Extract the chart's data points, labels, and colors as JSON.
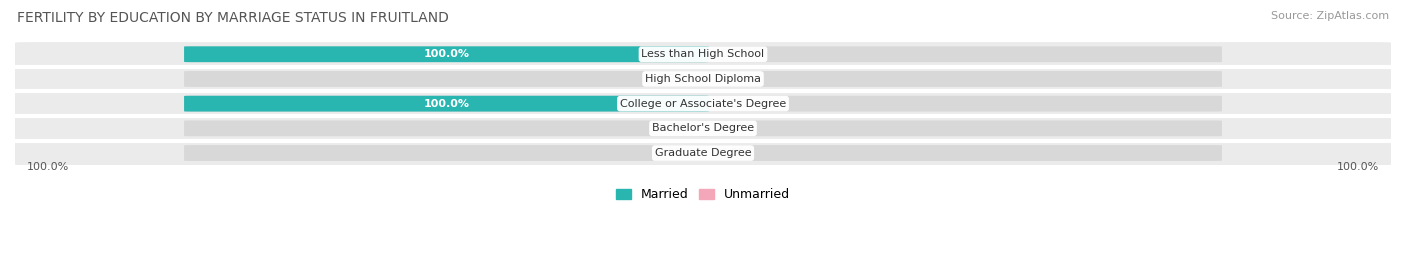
{
  "title": "FERTILITY BY EDUCATION BY MARRIAGE STATUS IN FRUITLAND",
  "source": "Source: ZipAtlas.com",
  "categories": [
    "Less than High School",
    "High School Diploma",
    "College or Associate's Degree",
    "Bachelor's Degree",
    "Graduate Degree"
  ],
  "married_values": [
    100.0,
    0.0,
    100.0,
    0.0,
    0.0
  ],
  "unmarried_values": [
    0.0,
    0.0,
    0.0,
    0.0,
    0.0
  ],
  "married_color": "#29b5b0",
  "married_light_color": "#7dd4d2",
  "unmarried_color": "#f4a7b9",
  "row_bg_color": "#ebebeb",
  "row_sep_color": "#ffffff",
  "label_color_white": "#ffffff",
  "label_color_dark": "#555555",
  "axis_label_left": "100.0%",
  "axis_label_right": "100.0%",
  "legend_married": "Married",
  "legend_unmarried": "Unmarried",
  "title_fontsize": 10,
  "source_fontsize": 8,
  "bar_label_fontsize": 8,
  "category_fontsize": 8,
  "legend_fontsize": 9
}
